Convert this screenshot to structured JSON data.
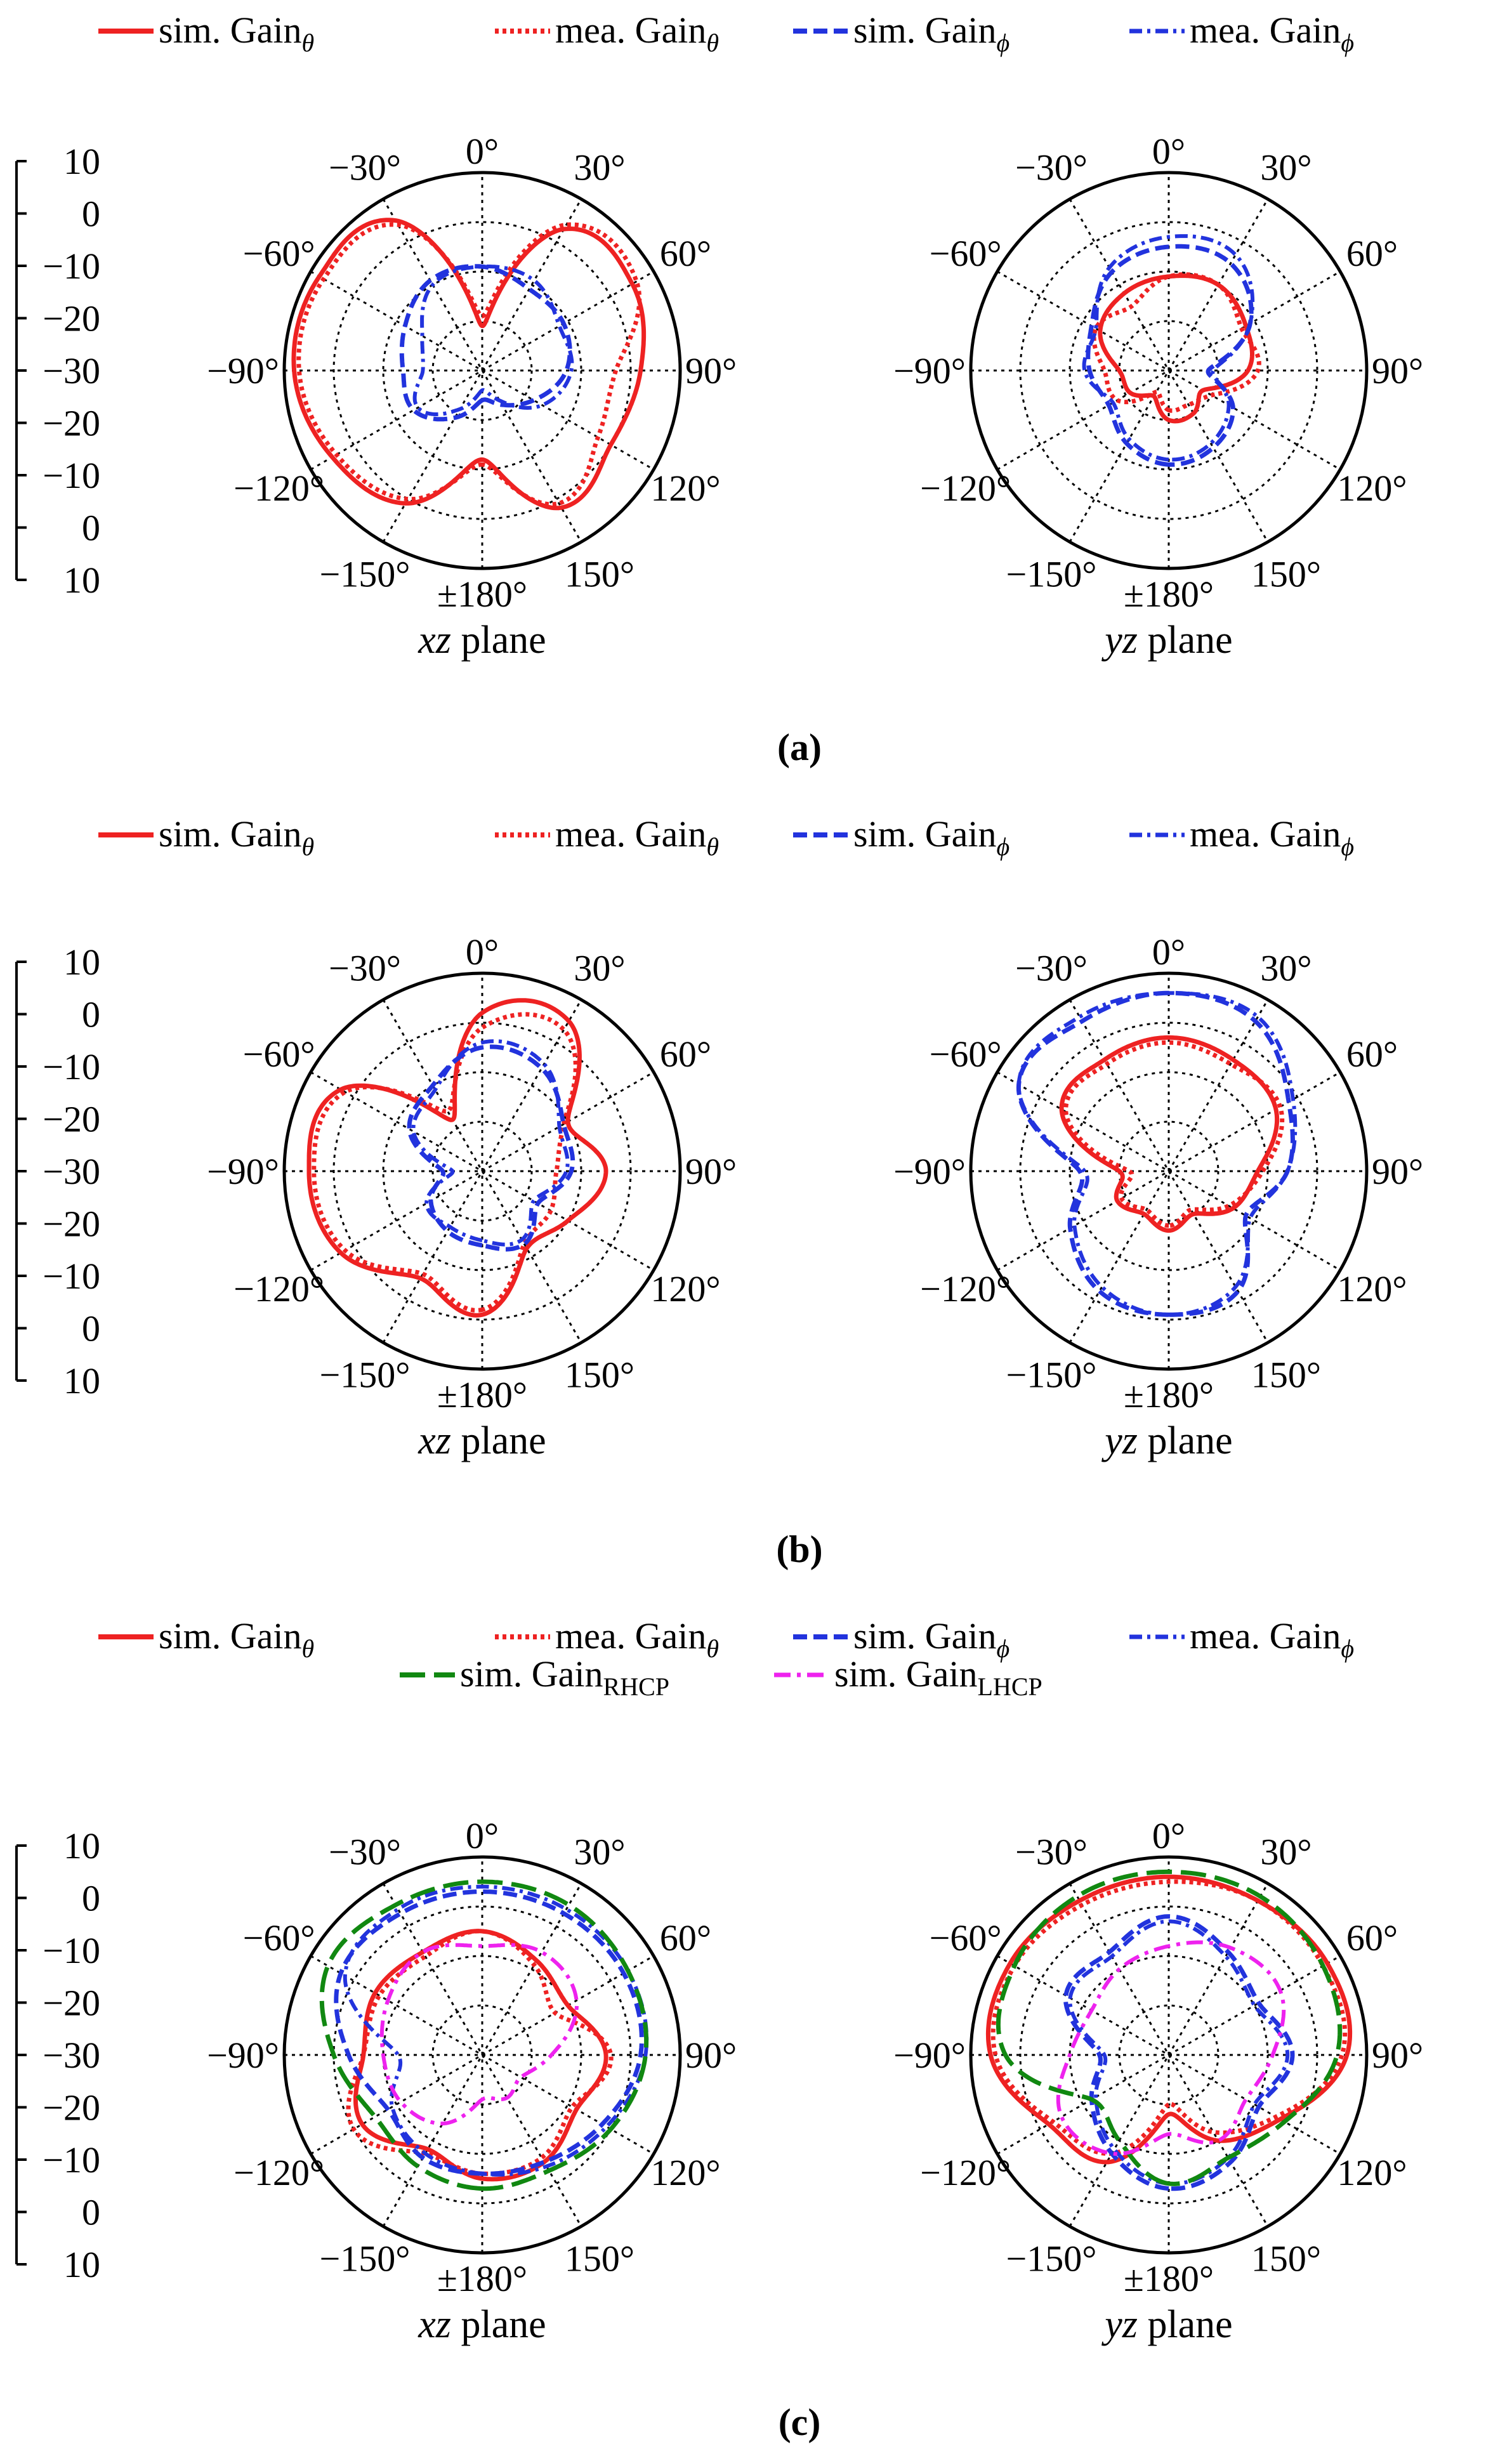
{
  "colors": {
    "theta": "#ee2222",
    "phi": "#2233dd",
    "rhcp": "#118811",
    "lhcp": "#ee22ee",
    "axis": "#000000"
  },
  "chart_data": [
    {
      "type": "polar-line",
      "panel_label": "(a)",
      "radial_ticks": [
        "10",
        "0",
        "−10",
        "−20",
        "−30",
        "−20",
        "−10",
        "0",
        "10"
      ],
      "rlim": [
        -30,
        10
      ],
      "angle_labels": [
        "0°",
        "30°",
        "60°",
        "90°",
        "120°",
        "150°",
        "±180°",
        "−150°",
        "−120°",
        "−90°",
        "−60°",
        "−30°"
      ],
      "legend": [
        {
          "name": "sim. Gain",
          "sub": "θ",
          "key": "sim_theta"
        },
        {
          "name": "mea. Gain",
          "sub": "θ",
          "key": "mea_theta"
        },
        {
          "name": "sim. Gain",
          "sub": "ϕ",
          "key": "sim_phi"
        },
        {
          "name": "mea. Gain",
          "sub": "ϕ",
          "key": "mea_phi"
        }
      ],
      "plots": [
        {
          "plane": "xz plane",
          "angles_deg": [
            -180,
            -150,
            -120,
            -90,
            -60,
            -30,
            0,
            30,
            60,
            90,
            120,
            150
          ],
          "series": [
            {
              "key": "sim_theta",
              "name": "sim. Gainθ",
              "values": [
                -12,
                1,
                5,
                8,
                8,
                5,
                -21,
                3,
                5,
                2,
                0,
                2
              ]
            },
            {
              "key": "mea_theta",
              "name": "mea. Gainθ",
              "values": [
                -11,
                0,
                4,
                7,
                7,
                4,
                -19,
                4,
                6,
                -3,
                -3,
                1
              ]
            },
            {
              "key": "sim_phi",
              "name": "sim. Gainϕ",
              "values": [
                -24,
                -19,
                -14,
                -14,
                -12,
                -9,
                -9,
                -11,
                -11,
                -13,
                -18,
                -22
              ]
            },
            {
              "key": "mea_phi",
              "name": "mea. Gainϕ",
              "values": [
                -26,
                -21,
                -15,
                -18,
                -16,
                -10,
                -9,
                -9,
                -12,
                -12,
                -16,
                -23
              ]
            }
          ]
        },
        {
          "plane": "yz plane",
          "angles_deg": [
            -180,
            -150,
            -120,
            -90,
            -60,
            -30,
            0,
            30,
            60,
            90,
            120,
            150
          ],
          "series": [
            {
              "key": "sim_theta",
              "name": "sim. Gainθ",
              "values": [
                -20,
                -24,
                -21,
                -20,
                -14,
                -12,
                -11,
                -10,
                -12,
                -14,
                -22,
                -20
              ]
            },
            {
              "key": "mea_theta",
              "name": "mea. Gainθ",
              "values": [
                -22,
                -25,
                -18,
                -17,
                -13,
                -15,
                -11,
                -10,
                -13,
                -12,
                -20,
                -22
              ]
            },
            {
              "key": "sim_phi",
              "name": "sim. Gainϕ",
              "values": [
                -11,
                -13,
                -16,
                -14,
                -12,
                -7,
                -5,
                -5,
                -11,
                -22,
                -15,
                -12
              ]
            },
            {
              "key": "mea_phi",
              "name": "mea. Gainϕ",
              "values": [
                -12,
                -14,
                -17,
                -13,
                -13,
                -6,
                -3,
                -3,
                -11,
                -21,
                -16,
                -13
              ]
            }
          ]
        }
      ]
    },
    {
      "type": "polar-line",
      "panel_label": "(b)",
      "radial_ticks": [
        "10",
        "0",
        "−10",
        "−20",
        "−30",
        "−20",
        "−10",
        "0",
        "10"
      ],
      "rlim": [
        -30,
        10
      ],
      "angle_labels": [
        "0°",
        "30°",
        "60°",
        "90°",
        "120°",
        "150°",
        "±180°",
        "−150°",
        "−120°",
        "−90°",
        "−60°",
        "−30°"
      ],
      "legend": [
        {
          "name": "sim. Gain",
          "sub": "θ",
          "key": "sim_theta"
        },
        {
          "name": "mea. Gain",
          "sub": "θ",
          "key": "mea_theta"
        },
        {
          "name": "sim. Gain",
          "sub": "ϕ",
          "key": "sim_phi"
        },
        {
          "name": "mea. Gain",
          "sub": "ϕ",
          "key": "mea_phi"
        }
      ],
      "plots": [
        {
          "plane": "xz plane",
          "angles_deg": [
            -180,
            -150,
            -120,
            -90,
            -60,
            -30,
            0,
            30,
            60,
            90,
            120,
            150
          ],
          "series": [
            {
              "key": "sim_theta",
              "name": "sim. Gainθ",
              "values": [
                -1,
                -5,
                3,
                5,
                3,
                -18,
                2,
                5,
                -10,
                -5,
                -10,
                -12
              ]
            },
            {
              "key": "mea_theta",
              "name": "mea. Gainθ",
              "values": [
                -2,
                -6,
                2,
                4,
                2,
                -16,
                -1,
                3,
                -11,
                -15,
                -14,
                -13
              ]
            },
            {
              "key": "sim_phi",
              "name": "sim. Gainϕ",
              "values": [
                -15,
                -16,
                -18,
                -22,
                -13,
                -10,
                -5,
                -6,
                -11,
                -12,
                -17,
                -13
              ]
            },
            {
              "key": "mea_phi",
              "name": "mea. Gainϕ",
              "values": [
                -16,
                -17,
                -17,
                -24,
                -14,
                -11,
                -4,
                -5,
                -12,
                -13,
                -18,
                -14
              ]
            }
          ]
        },
        {
          "plane": "yz plane",
          "angles_deg": [
            -180,
            -150,
            -120,
            -90,
            -60,
            -30,
            0,
            30,
            60,
            90,
            120,
            150
          ],
          "series": [
            {
              "key": "sim_theta",
              "name": "sim. Gainθ",
              "values": [
                -18,
                -20,
                -18,
                -20,
                -5,
                -4,
                -3,
                -4,
                -5,
                -12,
                -15,
                -20
              ]
            },
            {
              "key": "mea_theta",
              "name": "mea. Gainθ",
              "values": [
                -19,
                -21,
                -19,
                -22,
                -6,
                -5,
                -4,
                -5,
                -4,
                -11,
                -16,
                -21
              ]
            },
            {
              "key": "sim_phi",
              "name": "sim. Gainϕ",
              "values": [
                -1,
                -2,
                -7,
                -12,
                5,
                5,
                6,
                5,
                -2,
                -6,
                -12,
                -2
              ]
            },
            {
              "key": "mea_phi",
              "name": "mea. Gainϕ",
              "values": [
                -1,
                -3,
                -8,
                -13,
                5,
                6,
                6,
                6,
                -1,
                -6,
                -11,
                -3
              ]
            }
          ]
        }
      ]
    },
    {
      "type": "polar-line",
      "panel_label": "(c)",
      "radial_ticks": [
        "10",
        "0",
        "−10",
        "−20",
        "−30",
        "−20",
        "−10",
        "0",
        "10"
      ],
      "rlim": [
        -30,
        10
      ],
      "angle_labels": [
        "0°",
        "30°",
        "60°",
        "90°",
        "120°",
        "150°",
        "±180°",
        "−150°",
        "−120°",
        "−90°",
        "−60°",
        "−30°"
      ],
      "legend": [
        {
          "name": "sim. Gain",
          "sub": "θ",
          "key": "sim_theta"
        },
        {
          "name": "mea. Gain",
          "sub": "θ",
          "key": "mea_theta"
        },
        {
          "name": "sim. Gain",
          "sub": "ϕ",
          "key": "sim_phi"
        },
        {
          "name": "mea. Gain",
          "sub": "ϕ",
          "key": "mea_phi"
        },
        {
          "name": "sim. Gain",
          "sub": "RHCP",
          "key": "sim_rhcp"
        },
        {
          "name": "sim. Gain",
          "sub": "LHCP",
          "key": "sim_lhcp"
        }
      ],
      "plots": [
        {
          "plane": "xz plane",
          "angles_deg": [
            -180,
            -150,
            -120,
            -90,
            -60,
            -30,
            0,
            30,
            60,
            90,
            120,
            150
          ],
          "series": [
            {
              "key": "sim_theta",
              "name": "sim. Gainθ",
              "values": [
                -5,
                -8,
                -2,
                -6,
                -5,
                -6,
                -5,
                -8,
                -10,
                -5,
                -8,
                -5
              ]
            },
            {
              "key": "mea_theta",
              "name": "mea. Gainθ",
              "values": [
                -6,
                -7,
                0,
                -6,
                -6,
                -7,
                -5,
                -9,
                -13,
                -4,
                -9,
                -6
              ]
            },
            {
              "key": "sim_phi",
              "name": "sim. Gainϕ",
              "values": [
                -6,
                -6,
                -8,
                -3,
                3,
                3,
                3,
                3,
                3,
                2,
                -2,
                -5
              ]
            },
            {
              "key": "mea_phi",
              "name": "mea. Gainϕ",
              "values": [
                -6,
                -7,
                -9,
                -13,
                2,
                4,
                4,
                4,
                4,
                3,
                -1,
                -4
              ]
            },
            {
              "key": "sim_rhcp",
              "name": "sim. Gain RHCP",
              "values": [
                -3,
                -4,
                -5,
                0,
                6,
                5,
                5,
                5,
                4,
                3,
                0,
                -3
              ]
            },
            {
              "key": "sim_lhcp",
              "name": "sim. Gain LHCP",
              "values": [
                -21,
                -14,
                -11,
                -10,
                -8,
                -6,
                -8,
                -6,
                -8,
                -16,
                -21,
                -20
              ]
            }
          ]
        },
        {
          "plane": "yz plane",
          "angles_deg": [
            -180,
            -150,
            -120,
            -90,
            -60,
            -30,
            0,
            30,
            60,
            90,
            120,
            150
          ],
          "series": [
            {
              "key": "sim_theta",
              "name": "sim. Gainθ",
              "values": [
                -18,
                -5,
                -2,
                6,
                7,
                6,
                6,
                6,
                7,
                6,
                -4,
                -10
              ]
            },
            {
              "key": "mea_theta",
              "name": "mea. Gainθ",
              "values": [
                -20,
                -7,
                -3,
                5,
                6,
                5,
                5,
                6,
                6,
                5,
                -5,
                -12
              ]
            },
            {
              "key": "sim_phi",
              "name": "sim. Gainϕ",
              "values": [
                -3,
                -7,
                -12,
                -16,
                -6,
                -6,
                -2,
                -6,
                -9,
                -5,
                -9,
                -5
              ]
            },
            {
              "key": "mea_phi",
              "name": "mea. Gainϕ",
              "values": [
                -4,
                -8,
                -13,
                -17,
                -7,
                -7,
                -3,
                -7,
                -10,
                -6,
                -10,
                -6
              ]
            },
            {
              "key": "sim_rhcp",
              "name": "sim. Gain RHCP",
              "values": [
                -4,
                -10,
                -12,
                3,
                6,
                7,
                7,
                7,
                6,
                4,
                -3,
                -6
              ]
            },
            {
              "key": "sim_lhcp",
              "name": "sim. Gain LHCP",
              "values": [
                -14,
                -7,
                -5,
                -10,
                -12,
                -10,
                -8,
                -5,
                -4,
                -9,
                -12,
                -10
              ]
            }
          ]
        }
      ]
    }
  ]
}
